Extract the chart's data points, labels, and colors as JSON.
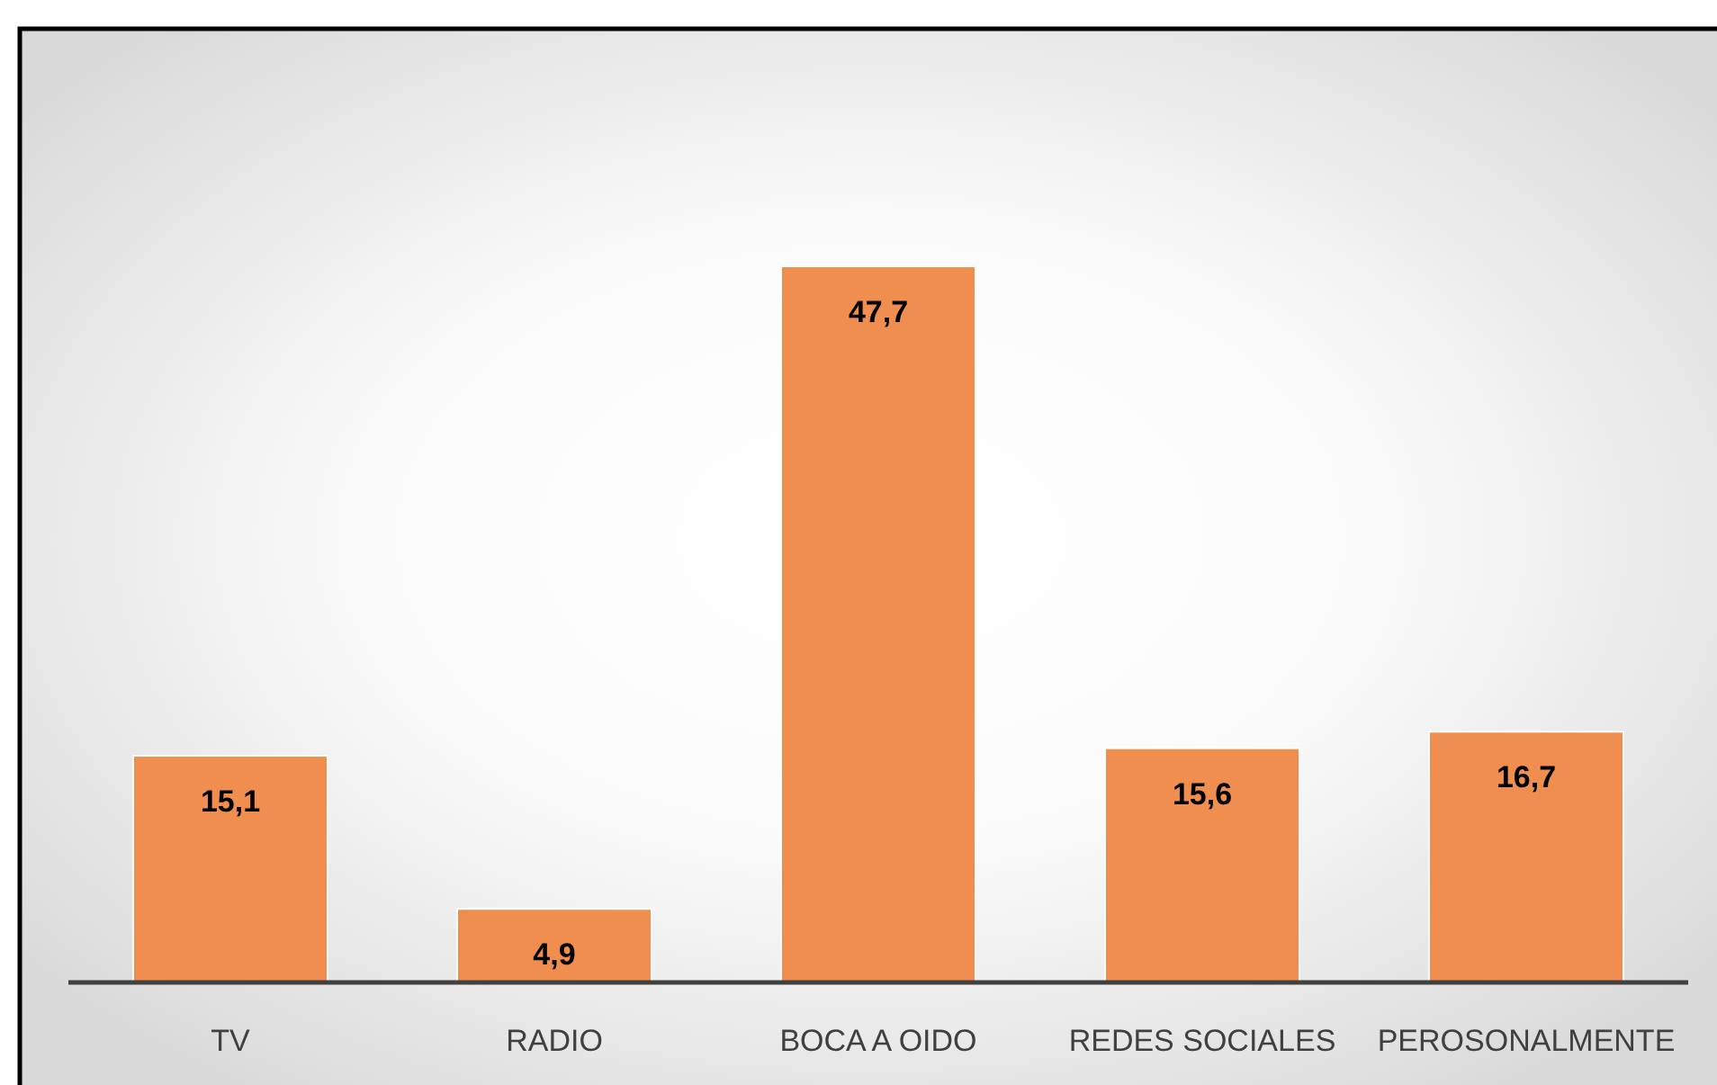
{
  "chart_data": {
    "type": "bar",
    "categories": [
      "TV",
      "RADIO",
      "BOCA A OIDO",
      "REDES SOCIALES",
      "PEROSONALMENTE"
    ],
    "values": [
      15.1,
      4.9,
      47.7,
      15.6,
      16.7
    ],
    "value_labels": [
      "15,1",
      "4,9",
      "47,7",
      "15,6",
      "16,7"
    ],
    "color": "#ef8e4e"
  }
}
